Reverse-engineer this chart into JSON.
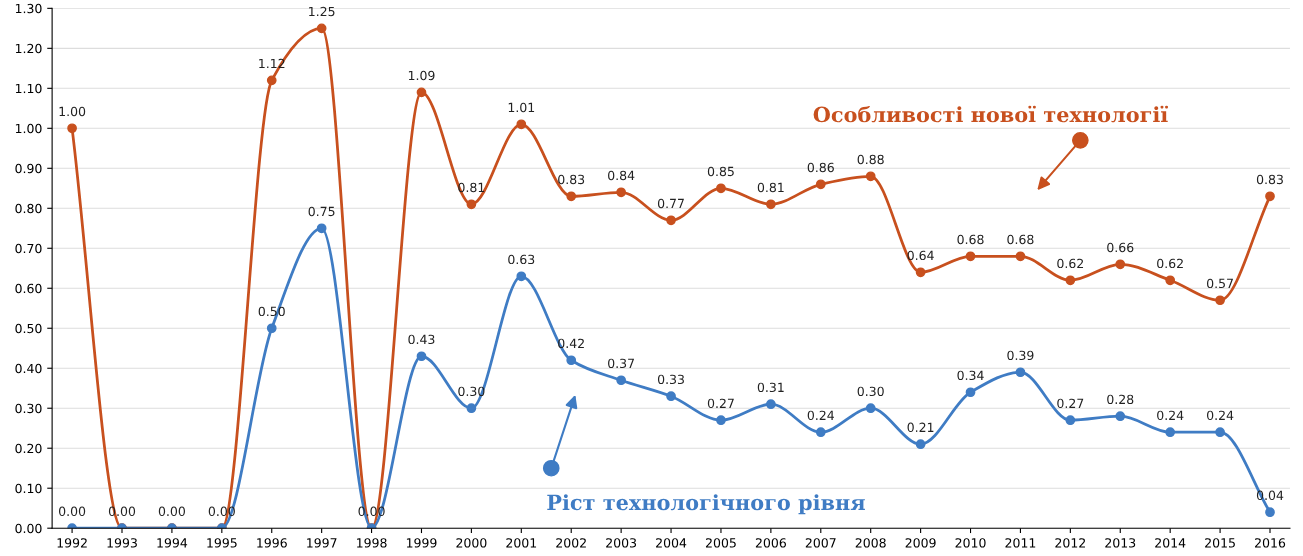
{
  "chart_data": {
    "type": "line",
    "categories": [
      "1992",
      "1993",
      "1994",
      "1995",
      "1996",
      "1997",
      "1998",
      "1999",
      "2000",
      "2001",
      "2002",
      "2003",
      "2004",
      "2005",
      "2006",
      "2007",
      "2008",
      "2009",
      "2010",
      "2011",
      "2012",
      "2013",
      "2014",
      "2015",
      "2016"
    ],
    "series": [
      {
        "name": "Особливості нової технології",
        "color": "#c8501e",
        "values": [
          1.0,
          0.0,
          0.0,
          0.0,
          1.12,
          1.25,
          0.0,
          1.09,
          0.81,
          1.01,
          0.83,
          0.84,
          0.77,
          0.85,
          0.81,
          0.86,
          0.88,
          0.64,
          0.68,
          0.68,
          0.62,
          0.66,
          0.62,
          0.57,
          0.83
        ],
        "value_labels": [
          "1.00",
          null,
          null,
          null,
          "1.12",
          "1.25",
          null,
          "1.09",
          "0.81",
          "1.01",
          "0.83",
          "0.84",
          "0.77",
          "0.85",
          "0.81",
          "0.86",
          "0.88",
          "0.64",
          "0.68",
          "0.68",
          "0.62",
          "0.66",
          "0.62",
          "0.57",
          "0.83"
        ]
      },
      {
        "name": "Ріст технологічного рівня",
        "color": "#3f7cc4",
        "values": [
          0.0,
          0.0,
          0.0,
          0.0,
          0.5,
          0.75,
          0.0,
          0.43,
          0.3,
          0.63,
          0.42,
          0.37,
          0.33,
          0.27,
          0.31,
          0.24,
          0.3,
          0.21,
          0.34,
          0.39,
          0.27,
          0.28,
          0.24,
          0.24,
          0.04
        ],
        "value_labels": [
          "0.00",
          "0.00",
          "0.00",
          "0.00",
          "0.50",
          "0.75",
          "0.00",
          "0.43",
          "0.30",
          "0.63",
          "0.42",
          "0.37",
          "0.33",
          "0.27",
          "0.31",
          "0.24",
          "0.30",
          "0.21",
          "0.34",
          "0.39",
          "0.27",
          "0.28",
          "0.24",
          "0.24",
          "0.04"
        ]
      }
    ],
    "ylim": [
      0,
      1.3
    ],
    "yticks": [
      {
        "value": 0,
        "label": "0.00"
      },
      {
        "value": 0.1,
        "label": "0.10"
      },
      {
        "value": 0.2,
        "label": "0.20"
      },
      {
        "value": 0.3,
        "label": "0.30"
      },
      {
        "value": 0.4,
        "label": "0.40"
      },
      {
        "value": 0.5,
        "label": "0.50"
      },
      {
        "value": 0.6,
        "label": "0.60"
      },
      {
        "value": 0.7,
        "label": "0.70"
      },
      {
        "value": 0.8,
        "label": "0.80"
      },
      {
        "value": 0.9,
        "label": "0.90"
      },
      {
        "value": 1.0,
        "label": "1.00"
      },
      {
        "value": 1.1,
        "label": "1.10"
      },
      {
        "value": 1.2,
        "label": "1.20"
      },
      {
        "value": 1.3,
        "label": "1.30"
      }
    ],
    "grid": "y",
    "marker": "circle",
    "line_style": "solid"
  }
}
